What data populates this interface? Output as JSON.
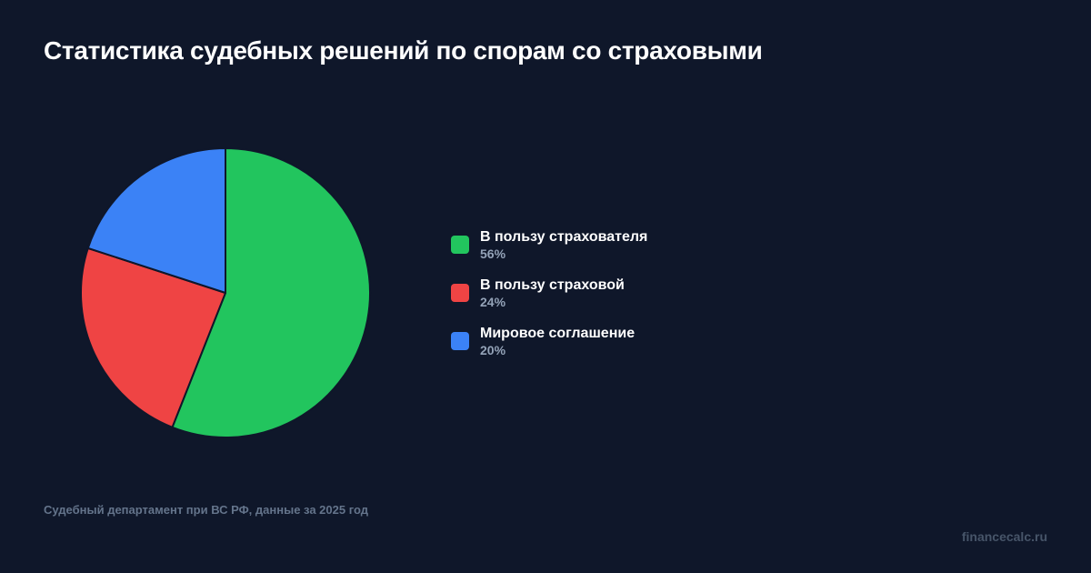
{
  "header": {
    "title": "Статистика судебных решений по спорам со страховыми"
  },
  "legend": {
    "items": [
      {
        "label": "В пользу страхователя",
        "value": "56%",
        "color": "#22c55e"
      },
      {
        "label": "В пользу страховой",
        "value": "24%",
        "color": "#ef4444"
      },
      {
        "label": "Мировое соглашение",
        "value": "20%",
        "color": "#3b82f6"
      }
    ]
  },
  "footer": {
    "source": "Судебный департамент при ВС РФ, данные за 2025 год",
    "brand": "financecalc.ru"
  },
  "colors": {
    "background": "#0f172a",
    "slice_stroke": "#0f172a"
  },
  "chart_data": {
    "type": "pie",
    "title": "Статистика судебных решений по спорам со страховыми",
    "categories": [
      "В пользу страхователя",
      "В пользу страховой",
      "Мировое соглашение"
    ],
    "values": [
      56,
      24,
      20
    ],
    "unit": "%",
    "colors": [
      "#22c55e",
      "#ef4444",
      "#3b82f6"
    ],
    "start_angle": "top (12 o'clock), clockwise",
    "legend_position": "right",
    "source": "Судебный департамент при ВС РФ, данные за 2025 год"
  }
}
